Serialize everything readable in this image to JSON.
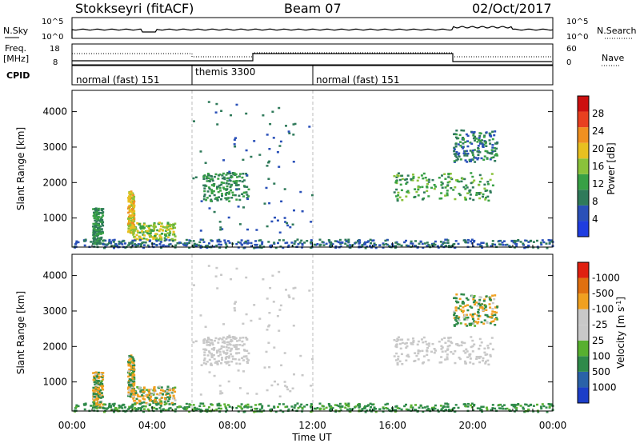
{
  "header": {
    "station": "Stokkseyri (fitACF)",
    "beam": "Beam 07",
    "date": "02/Oct/2017"
  },
  "strip": {
    "nsky_label": "N.Sky",
    "nsky_ticks": [
      "10^5",
      "10^0"
    ],
    "nsearch_label": "N.Search",
    "freq_label_1": "Freq.",
    "freq_label_2": "[MHz]",
    "freq_ticks": [
      "18",
      "8"
    ],
    "nave_label": "Nave",
    "nave_ticks": [
      "60",
      "0"
    ],
    "cpid_label": "CPID",
    "cpid_segments": [
      {
        "start_h": 0,
        "end_h": 6,
        "label": "normal (fast) 151"
      },
      {
        "start_h": 6,
        "end_h": 12,
        "label": "themis 3300"
      },
      {
        "start_h": 12,
        "end_h": 24,
        "label": "normal (fast) 151"
      }
    ]
  },
  "axes": {
    "xlabel": "Time UT",
    "x_ticks": [
      "00:00",
      "04:00",
      "08:00",
      "12:00",
      "16:00",
      "20:00",
      "00:00"
    ],
    "ylabel_html": "Slant Range [km]",
    "y_ticks": [
      "1000",
      "2000",
      "3000",
      "4000"
    ]
  },
  "colorbars": {
    "power": {
      "label": "Power [dB]",
      "ticks": [
        "4",
        "8",
        "12",
        "16",
        "20",
        "24",
        "28"
      ],
      "colors": [
        "#1f3de0",
        "#2a50b8",
        "#2f7a5a",
        "#38a045",
        "#8ac23a",
        "#e8c020",
        "#f09020",
        "#e84020",
        "#cc1010"
      ]
    },
    "velocity": {
      "label": "Velocity [m s",
      "label_sup": "-1",
      "label_end": "]",
      "ticks": [
        "1000",
        "500",
        "100",
        "25",
        "-25",
        "-100",
        "-500",
        "-1000"
      ],
      "colors": [
        "#1c3ec8",
        "#2a62a8",
        "#2f8a4a",
        "#58b030",
        "#c8c8c8",
        "#c8c8c8",
        "#f0a020",
        "#e07010",
        "#e02010"
      ]
    }
  },
  "chart_data": [
    {
      "type": "heatmap",
      "title": "Power",
      "x_range_hours": [
        0,
        24
      ],
      "ylim_km": [
        180,
        4600
      ],
      "colorbar_label": "Power [dB]",
      "features": [
        {
          "name": "early echo",
          "t": [
            1.0,
            1.5
          ],
          "range_km": [
            300,
            1300
          ],
          "level_db": 10
        },
        {
          "name": "vertical bright streak",
          "t": [
            2.75,
            3.05
          ],
          "range_km": [
            600,
            1800
          ],
          "level_db": 20
        },
        {
          "name": "near-range band",
          "t": [
            3.0,
            5.1
          ],
          "range_km": [
            400,
            900
          ],
          "level_db": 16
        },
        {
          "name": "descending arc",
          "t": [
            6.5,
            8.8
          ],
          "range_km": [
            1500,
            2300
          ],
          "level_db": 10
        },
        {
          "name": "late arc",
          "t": [
            16.0,
            21.0
          ],
          "range_km": [
            1500,
            2300
          ],
          "level_db": 12
        },
        {
          "name": "late far echo",
          "t": [
            19.0,
            21.2
          ],
          "range_km": [
            2600,
            3500
          ],
          "level_db": 8
        }
      ]
    },
    {
      "type": "heatmap",
      "title": "Velocity",
      "x_range_hours": [
        0,
        24
      ],
      "ylim_km": [
        180,
        4600
      ],
      "colorbar_label": "Velocity [m s-1]",
      "features": [
        {
          "name": "near-range flow",
          "t": [
            0,
            24
          ],
          "range_km": [
            180,
            500
          ],
          "level_ms": 100
        },
        {
          "name": "vertical streak",
          "t": [
            2.75,
            3.05
          ],
          "range_km": [
            600,
            1800
          ],
          "level_ms": -500
        },
        {
          "name": "slow band",
          "t": [
            3.5,
            5.1
          ],
          "range_km": [
            600,
            900
          ],
          "level_ms": 0
        },
        {
          "name": "descending arc",
          "t": [
            6.5,
            8.8
          ],
          "range_km": [
            1500,
            2300
          ],
          "level_ms": 0
        },
        {
          "name": "late arc",
          "t": [
            16.0,
            21.0
          ],
          "range_km": [
            1500,
            2300
          ],
          "level_ms": 0
        }
      ]
    }
  ]
}
